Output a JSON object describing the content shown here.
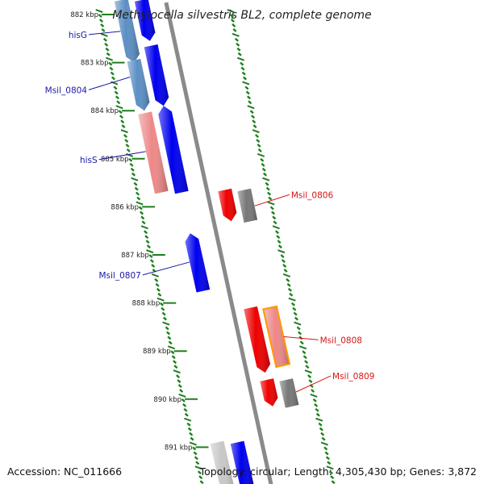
{
  "title": "Methylocella silvestris BL2, complete genome",
  "footer": {
    "accession": "Accession: NC_011666",
    "summary": "Topology: circular; Length: 4,305,430 bp; Genes: 3,872"
  },
  "colors": {
    "forward_cds": "#0000ee",
    "reverse_cds": "#ee0000",
    "forward_gene": "#5b8fc4",
    "reverse_gene": "#ee8888",
    "gray_gene": "#777777",
    "light_gray_gene": "#c8c8c8",
    "gc_skew": "#1f7f1f",
    "backbone": "#8a8a8a",
    "label_forward": "#1a1aa6",
    "label_reverse": "#d81414"
  },
  "ticks": [
    {
      "kbp": 882,
      "label": "882 kbp"
    },
    {
      "kbp": 883,
      "label": "883 kbp"
    },
    {
      "kbp": 884,
      "label": "884 kbp"
    },
    {
      "kbp": 885,
      "label": "885 kbp"
    },
    {
      "kbp": 886,
      "label": "886 kbp"
    },
    {
      "kbp": 887,
      "label": "887 kbp"
    },
    {
      "kbp": 888,
      "label": "888 kbp"
    },
    {
      "kbp": 889,
      "label": "889 kbp"
    },
    {
      "kbp": 890,
      "label": "890 kbp"
    },
    {
      "kbp": 891,
      "label": "891 kbp"
    }
  ],
  "features": [
    {
      "id": "hisG-gene",
      "ring": "fwd_outer",
      "color": "forward_gene",
      "start": 881.7,
      "end": 883.0,
      "dir": 1
    },
    {
      "id": "hisG-cds",
      "ring": "fwd_inner",
      "color": "forward_cds",
      "start": 881.7,
      "end": 882.55,
      "dir": 1
    },
    {
      "id": "Msil_0804-gene",
      "ring": "fwd_outer",
      "color": "forward_gene",
      "start": 882.95,
      "end": 884.0,
      "dir": 1
    },
    {
      "id": "Msil_0804-cds",
      "ring": "fwd_inner",
      "color": "forward_cds",
      "start": 882.65,
      "end": 883.9,
      "dir": 1
    },
    {
      "id": "hisS-gene",
      "ring": "fwd_outer",
      "color": "reverse_gene",
      "start": 884.05,
      "end": 885.7,
      "dir": 0
    },
    {
      "id": "hisS-cds",
      "ring": "fwd_inner",
      "color": "forward_cds",
      "start": 883.9,
      "end": 885.7,
      "dir": -1
    },
    {
      "id": "Msil_0806-cds",
      "ring": "rev_inner",
      "color": "reverse_cds",
      "start": 885.65,
      "end": 886.3,
      "dir": 1
    },
    {
      "id": "Msil_0806-gene",
      "ring": "rev_outer",
      "color": "gray_gene",
      "start": 885.65,
      "end": 886.3,
      "dir": 0
    },
    {
      "id": "Msil_0807-cds",
      "ring": "fwd_inner",
      "color": "forward_cds",
      "start": 886.55,
      "end": 887.75,
      "dir": -1
    },
    {
      "id": "Msil_0808-cds",
      "ring": "rev_inner",
      "color": "reverse_cds",
      "start": 888.1,
      "end": 889.45,
      "dir": 1
    },
    {
      "id": "Msil_0808-gene",
      "ring": "rev_outer",
      "color": "reverse_gene",
      "start": 888.1,
      "end": 889.3,
      "dir": 0
    },
    {
      "id": "Msil_0809-cds",
      "ring": "rev_inner",
      "color": "reverse_cds",
      "start": 889.6,
      "end": 890.15,
      "dir": 1
    },
    {
      "id": "Msil_0809-gene",
      "ring": "rev_outer",
      "color": "gray_gene",
      "start": 889.6,
      "end": 890.15,
      "dir": 0
    },
    {
      "id": "next-gene",
      "ring": "fwd_outer",
      "color": "light_gray_gene",
      "start": 890.9,
      "end": 892.0,
      "dir": 0
    },
    {
      "id": "next-cds",
      "ring": "fwd_inner",
      "color": "forward_cds",
      "start": 890.9,
      "end": 892.0,
      "dir": 1
    }
  ],
  "labels": [
    {
      "text": "hisG",
      "strand": "fwd",
      "kbp": 882.4,
      "feature_kbp": 882.35,
      "ring": "fwd_outer"
    },
    {
      "text": "Msil_0804",
      "strand": "fwd",
      "kbp": 883.55,
      "feature_kbp": 883.3,
      "ring": "fwd_outer"
    },
    {
      "text": "hisS",
      "strand": "fwd",
      "kbp": 885.0,
      "feature_kbp": 884.85,
      "ring": "fwd_outer"
    },
    {
      "text": "Msil_0806",
      "strand": "rev",
      "kbp": 885.78,
      "feature_kbp": 885.98,
      "ring": "rev_outer"
    },
    {
      "text": "Msil_0807",
      "strand": "fwd",
      "kbp": 887.4,
      "feature_kbp": 887.15,
      "ring": "fwd_inner"
    },
    {
      "text": "Msil_0808",
      "strand": "rev",
      "kbp": 888.8,
      "feature_kbp": 888.7,
      "ring": "rev_outer"
    },
    {
      "text": "Msil_0809",
      "strand": "rev",
      "kbp": 889.55,
      "feature_kbp": 889.85,
      "ring": "rev_outer"
    }
  ]
}
